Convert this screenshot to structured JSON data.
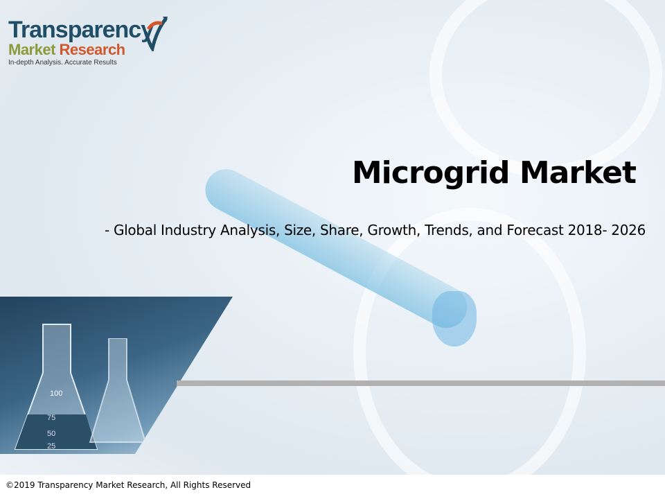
{
  "logo": {
    "line1": "Transparency",
    "line2a": "Market",
    "line2b": "Research",
    "tagline": "In-depth Analysis. Accurate Results",
    "registered": "®"
  },
  "title": "Microgrid Market",
  "subtitle": "- Global Industry Analysis, Size, Share, Growth, Trends, and Forecast 2018- 2026",
  "photo": {
    "flask_marks": [
      "100",
      "75",
      "50",
      "25"
    ]
  },
  "footer": {
    "copyright": "©2019 Transparency Market Research, All Rights Reserved"
  },
  "colors": {
    "logo_blue": "#1f4e66",
    "logo_olive": "#8c9a3a",
    "logo_orange": "#d2572a",
    "divider": "#b1b1b1"
  }
}
